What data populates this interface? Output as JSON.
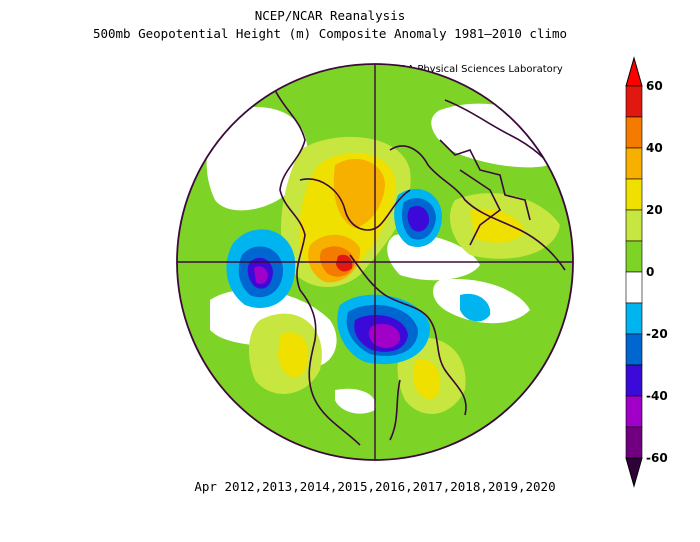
{
  "title_line1": "NCEP/NCAR Reanalysis",
  "title_line2": "500mb Geopotential Height (m) Composite Anomaly 1981–2010 climo",
  "credit": "NOAA Physical Sciences Laboratory",
  "footer": "Apr 2012,2013,2014,2015,2016,2017,2018,2019,2020",
  "map": {
    "projection": "north-polar-stereographic",
    "variable": "500mb geopotential height anomaly",
    "units": "m"
  },
  "colorbar": {
    "labels": [
      "60",
      "40",
      "20",
      "0",
      "-20",
      "-40",
      "-60"
    ],
    "bins": [
      {
        "range": [
          50,
          60
        ],
        "color": "#e01810"
      },
      {
        "range": [
          40,
          50
        ],
        "color": "#f47a00"
      },
      {
        "range": [
          30,
          40
        ],
        "color": "#f8b000"
      },
      {
        "range": [
          20,
          30
        ],
        "color": "#f0e000"
      },
      {
        "range": [
          10,
          20
        ],
        "color": "#c8e640"
      },
      {
        "range": [
          0,
          10
        ],
        "color": "#7ed327"
      },
      {
        "range": [
          -10,
          0
        ],
        "color": "#ffffff"
      },
      {
        "range": [
          -20,
          -10
        ],
        "color": "#00b4f0"
      },
      {
        "range": [
          -30,
          -20
        ],
        "color": "#0066d0"
      },
      {
        "range": [
          -40,
          -30
        ],
        "color": "#3c0ad8"
      },
      {
        "range": [
          -50,
          -40
        ],
        "color": "#a000c8"
      },
      {
        "range": [
          -60,
          -50
        ],
        "color": "#700080"
      }
    ],
    "extend_top_color": "#ff0000",
    "extend_bottom_color": "#30003a"
  },
  "colors": {
    "boundary": "#3a0a3a"
  }
}
